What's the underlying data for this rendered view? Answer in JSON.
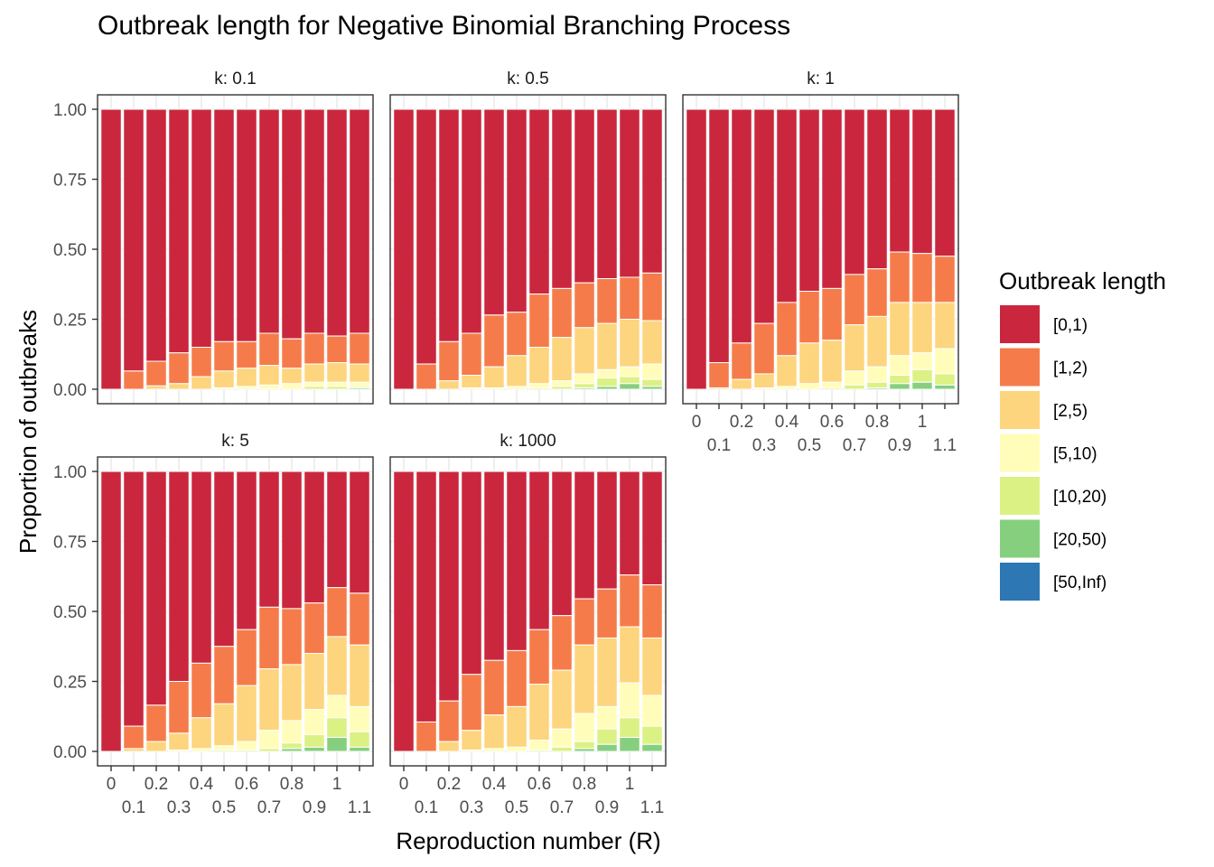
{
  "chart_data": {
    "type": "bar",
    "stacked": true,
    "title": "Outbreak length for Negative Binomial Branching Process",
    "xlabel": "Reproduction number (R)",
    "ylabel": "Proportion of outbreaks",
    "ylim": [
      0,
      1
    ],
    "y_ticks": [
      "0.00",
      "0.25",
      "0.50",
      "0.75",
      "1.00"
    ],
    "x_categories": [
      "0",
      "0.1",
      "0.2",
      "0.3",
      "0.4",
      "0.5",
      "0.6",
      "0.7",
      "0.8",
      "0.9",
      "1",
      "1.1"
    ],
    "legend": {
      "title": "Outbreak length",
      "position": "right",
      "entries": [
        {
          "label": "[0,1)",
          "color": "#CA273E"
        },
        {
          "label": "[1,2)",
          "color": "#F57C4A"
        },
        {
          "label": "[2,5)",
          "color": "#FDD57E"
        },
        {
          "label": "[5,10)",
          "color": "#FFFDB9"
        },
        {
          "label": "[10,20)",
          "color": "#DCF184"
        },
        {
          "label": "[20,50)",
          "color": "#86CF7E"
        },
        {
          "label": "[50,Inf)",
          "color": "#2C77B4"
        }
      ]
    },
    "facets": [
      {
        "label": "k: 0.1",
        "boundaries": [
          [
            0,
            0,
            0,
            0,
            0,
            0
          ],
          [
            0.065,
            0,
            0,
            0,
            0,
            0
          ],
          [
            0.1,
            0.012,
            0,
            0,
            0,
            0
          ],
          [
            0.13,
            0.02,
            0,
            0,
            0,
            0
          ],
          [
            0.15,
            0.045,
            0,
            0,
            0,
            0
          ],
          [
            0.17,
            0.065,
            0.005,
            0,
            0,
            0
          ],
          [
            0.17,
            0.075,
            0.01,
            0,
            0,
            0
          ],
          [
            0.2,
            0.085,
            0.015,
            0,
            0,
            0
          ],
          [
            0.18,
            0.075,
            0.02,
            0,
            0,
            0
          ],
          [
            0.2,
            0.09,
            0.025,
            0.01,
            0,
            0
          ],
          [
            0.19,
            0.095,
            0.025,
            0.01,
            0,
            0
          ],
          [
            0.2,
            0.09,
            0.025,
            0.01,
            0.005,
            0
          ]
        ]
      },
      {
        "label": "k: 0.5",
        "boundaries": [
          [
            0,
            0,
            0,
            0,
            0,
            0
          ],
          [
            0.09,
            0,
            0,
            0,
            0,
            0
          ],
          [
            0.17,
            0.03,
            0,
            0,
            0,
            0
          ],
          [
            0.2,
            0.05,
            0.005,
            0,
            0,
            0
          ],
          [
            0.265,
            0.08,
            0.005,
            0,
            0,
            0
          ],
          [
            0.275,
            0.12,
            0.01,
            0,
            0,
            0
          ],
          [
            0.34,
            0.15,
            0.02,
            0.005,
            0,
            0
          ],
          [
            0.36,
            0.185,
            0.03,
            0.01,
            0,
            0
          ],
          [
            0.38,
            0.22,
            0.055,
            0.02,
            0.005,
            0
          ],
          [
            0.395,
            0.235,
            0.07,
            0.04,
            0.01,
            0
          ],
          [
            0.4,
            0.25,
            0.08,
            0.045,
            0.02,
            0
          ],
          [
            0.415,
            0.245,
            0.09,
            0.035,
            0.01,
            0
          ]
        ]
      },
      {
        "label": "k: 1",
        "boundaries": [
          [
            0,
            0,
            0,
            0,
            0,
            0
          ],
          [
            0.095,
            0.005,
            0,
            0,
            0,
            0
          ],
          [
            0.165,
            0.035,
            0,
            0,
            0,
            0
          ],
          [
            0.235,
            0.055,
            0.005,
            0,
            0,
            0
          ],
          [
            0.31,
            0.12,
            0.01,
            0,
            0,
            0
          ],
          [
            0.35,
            0.165,
            0.02,
            0,
            0,
            0
          ],
          [
            0.36,
            0.175,
            0.025,
            0.005,
            0,
            0
          ],
          [
            0.41,
            0.23,
            0.065,
            0.015,
            0,
            0
          ],
          [
            0.43,
            0.26,
            0.08,
            0.025,
            0.005,
            0
          ],
          [
            0.49,
            0.31,
            0.12,
            0.05,
            0.02,
            0
          ],
          [
            0.485,
            0.31,
            0.13,
            0.07,
            0.025,
            0
          ],
          [
            0.475,
            0.31,
            0.145,
            0.055,
            0.015,
            0
          ]
        ]
      },
      {
        "label": "k: 5",
        "boundaries": [
          [
            0,
            0,
            0,
            0,
            0,
            0
          ],
          [
            0.09,
            0.01,
            0,
            0,
            0,
            0
          ],
          [
            0.165,
            0.035,
            0,
            0,
            0,
            0
          ],
          [
            0.25,
            0.065,
            0.005,
            0,
            0,
            0
          ],
          [
            0.315,
            0.12,
            0.01,
            0,
            0,
            0
          ],
          [
            0.375,
            0.17,
            0.02,
            0.005,
            0,
            0
          ],
          [
            0.435,
            0.235,
            0.035,
            0.005,
            0,
            0
          ],
          [
            0.515,
            0.295,
            0.075,
            0.01,
            0,
            0
          ],
          [
            0.51,
            0.31,
            0.11,
            0.03,
            0.01,
            0
          ],
          [
            0.53,
            0.35,
            0.15,
            0.06,
            0.015,
            0
          ],
          [
            0.585,
            0.41,
            0.2,
            0.12,
            0.05,
            0
          ],
          [
            0.565,
            0.38,
            0.16,
            0.07,
            0.015,
            0
          ]
        ]
      },
      {
        "label": "k: 1000",
        "boundaries": [
          [
            0,
            0,
            0,
            0,
            0,
            0
          ],
          [
            0.105,
            0,
            0,
            0,
            0,
            0
          ],
          [
            0.18,
            0.035,
            0,
            0,
            0,
            0
          ],
          [
            0.275,
            0.075,
            0.005,
            0,
            0,
            0
          ],
          [
            0.325,
            0.13,
            0.01,
            0,
            0,
            0
          ],
          [
            0.36,
            0.16,
            0.015,
            0,
            0,
            0
          ],
          [
            0.435,
            0.24,
            0.04,
            0.005,
            0,
            0
          ],
          [
            0.485,
            0.29,
            0.08,
            0.015,
            0,
            0
          ],
          [
            0.545,
            0.38,
            0.135,
            0.035,
            0.01,
            0
          ],
          [
            0.58,
            0.405,
            0.16,
            0.08,
            0.025,
            0
          ],
          [
            0.63,
            0.445,
            0.245,
            0.12,
            0.05,
            0
          ],
          [
            0.595,
            0.405,
            0.2,
            0.09,
            0.025,
            0
          ]
        ]
      }
    ]
  }
}
